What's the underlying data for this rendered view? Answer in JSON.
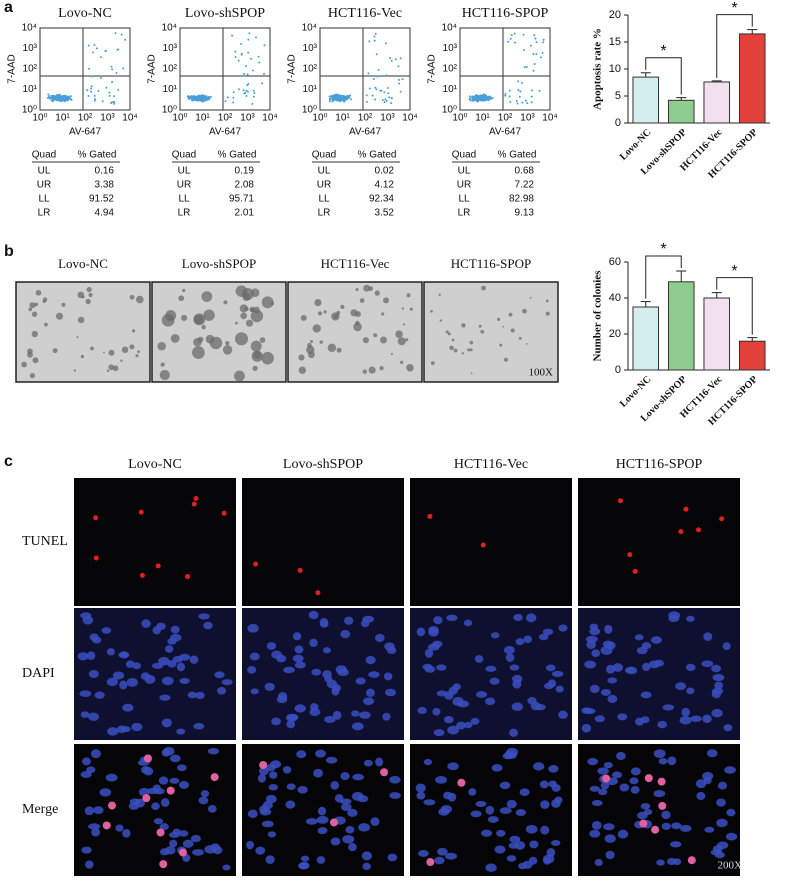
{
  "panel_labels": [
    "a",
    "b",
    "c"
  ],
  "flow_cytometry": {
    "x_label": "AV-647",
    "y_label": "7-AAD",
    "ticks": [
      "10⁰",
      "10¹",
      "10²",
      "10³",
      "10⁴"
    ],
    "plots": [
      {
        "title": "Lovo-NC",
        "table": {
          "header": [
            "Quad",
            "% Gated"
          ],
          "rows": [
            [
              "UL",
              "0.16"
            ],
            [
              "UR",
              "3.38"
            ],
            [
              "LL",
              "91.52"
            ],
            [
              "LR",
              "4.94"
            ]
          ]
        }
      },
      {
        "title": "Lovo-shSPOP",
        "table": {
          "header": [
            "Quad",
            "% Gated"
          ],
          "rows": [
            [
              "UL",
              "0.19"
            ],
            [
              "UR",
              "2.08"
            ],
            [
              "LL",
              "95.71"
            ],
            [
              "LR",
              "2.01"
            ]
          ]
        }
      },
      {
        "title": "HCT116-Vec",
        "table": {
          "header": [
            "Quad",
            "% Gated"
          ],
          "rows": [
            [
              "UL",
              "0.02"
            ],
            [
              "UR",
              "4.12"
            ],
            [
              "LL",
              "92.34"
            ],
            [
              "LR",
              "3.52"
            ]
          ]
        }
      },
      {
        "title": "HCT116-SPOP",
        "table": {
          "header": [
            "Quad",
            "% Gated"
          ],
          "rows": [
            [
              "UL",
              "0.68"
            ],
            [
              "UR",
              "7.22"
            ],
            [
              "LL",
              "82.98"
            ],
            [
              "LR",
              "9.13"
            ]
          ]
        }
      }
    ]
  },
  "colony_images": {
    "titles": [
      "Lovo-NC",
      "Lovo-shSPOP",
      "HCT116-Vec",
      "HCT116-SPOP"
    ],
    "magnification": "100X"
  },
  "tunel_images": {
    "columns": [
      "Lovo-NC",
      "Lovo-shSPOP",
      "HCT116-Vec",
      "HCT116-SPOP"
    ],
    "rows": [
      "TUNEL",
      "DAPI",
      "Merge"
    ],
    "magnification": "200X"
  },
  "chart_data": [
    {
      "type": "bar",
      "ylabel": "Apoptosis rate %",
      "categories": [
        "Lovo-NC",
        "Lovo-shSPOP",
        "HCT116-Vec",
        "HCT116-SPOP"
      ],
      "values": [
        8.5,
        4.2,
        7.6,
        16.5
      ],
      "errors": [
        0.8,
        0.5,
        0.2,
        0.8
      ],
      "colors": [
        "#d4eef0",
        "#8fcc8f",
        "#f3e0ee",
        "#e2413b"
      ],
      "ylim": [
        0,
        20
      ],
      "yticks": [
        0,
        5,
        10,
        15,
        20
      ],
      "annotations": [
        "*",
        "*"
      ]
    },
    {
      "type": "bar",
      "ylabel": "Number of colonies",
      "categories": [
        "Lovo-NC",
        "Lovo-shSPOP",
        "HCT116-Vec",
        "HCT116-SPOP"
      ],
      "values": [
        35,
        49,
        40,
        16
      ],
      "errors": [
        3,
        6,
        3,
        2
      ],
      "colors": [
        "#d4eef0",
        "#8fcc8f",
        "#f3e0ee",
        "#e2413b"
      ],
      "ylim": [
        0,
        60
      ],
      "yticks": [
        0,
        20,
        40,
        60
      ],
      "annotations": [
        "*",
        "*"
      ]
    }
  ]
}
